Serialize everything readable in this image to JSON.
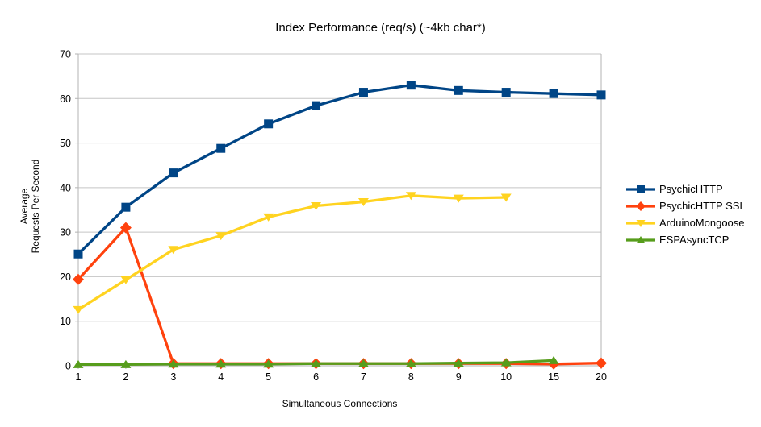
{
  "title": "Index Performance (req/s) (~4kb char*)",
  "chart_data": {
    "type": "line",
    "title": "Index Performance (req/s) (~4kb char*)",
    "xlabel": "Simultaneous Connections",
    "ylabel": "Average Requests Per Second",
    "ylabel_lines": [
      "Average",
      "Requests Per Second"
    ],
    "categories": [
      "1",
      "2",
      "3",
      "4",
      "5",
      "6",
      "7",
      "8",
      "9",
      "10",
      "15",
      "20"
    ],
    "ylim": [
      0,
      70
    ],
    "ytick_step": 10,
    "ytick_labels": [
      "0",
      "10",
      "20",
      "30",
      "40",
      "50",
      "60",
      "70"
    ],
    "grid": "horizontal",
    "legend_position": "right",
    "axis_color": "#b3b3b3",
    "grid_color": "#c5c5c5",
    "text_color": "#000000",
    "series": [
      {
        "name": "PsychicHTTP",
        "color": "#004586",
        "marker": "square",
        "values": [
          25.1,
          35.6,
          43.3,
          48.8,
          54.3,
          58.4,
          61.4,
          63.0,
          61.8,
          61.4,
          61.1,
          60.8
        ]
      },
      {
        "name": "PsychicHTTP SSL",
        "color": "#FF420E",
        "marker": "diamond",
        "values": [
          19.4,
          31.0,
          0.5,
          0.5,
          0.5,
          0.5,
          0.5,
          0.5,
          0.5,
          0.5,
          0.4,
          0.6
        ]
      },
      {
        "name": "ArduinoMongoose",
        "color": "#FFD320",
        "marker": "triangle-down",
        "values": [
          12.6,
          19.3,
          26.1,
          29.2,
          33.4,
          35.9,
          36.8,
          38.2,
          37.6,
          37.8,
          null,
          null
        ]
      },
      {
        "name": "ESPAsyncTCP",
        "color": "#579D1C",
        "marker": "triangle-up",
        "values": [
          0.3,
          0.3,
          0.4,
          0.4,
          0.4,
          0.5,
          0.5,
          0.5,
          0.6,
          0.7,
          1.2,
          null
        ]
      }
    ]
  }
}
